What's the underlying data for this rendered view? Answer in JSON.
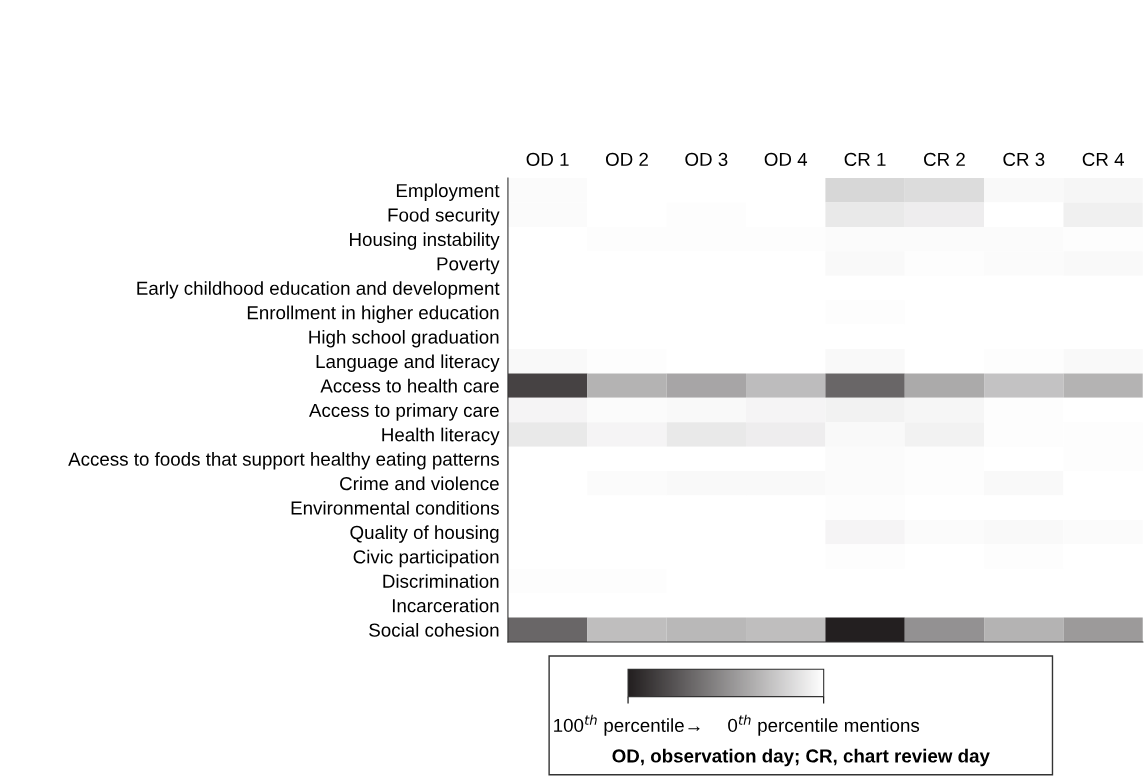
{
  "chart_data": {
    "type": "heatmap",
    "categories": [
      "OD 1",
      "OD 2",
      "OD 3",
      "OD 4",
      "CR 1",
      "CR 2",
      "CR 3",
      "CR 4"
    ],
    "y_categories": [
      "Employment",
      "Food security",
      "Housing instability",
      "Poverty",
      "Early childhood education and development",
      "Enrollment in higher education",
      "High school graduation",
      "Language and literacy",
      "Access to health care",
      "Access to primary care",
      "Health literacy",
      "Access to foods that support healthy eating patterns",
      "Crime and violence",
      "Environmental conditions",
      "Quality of housing",
      "Civic participation",
      "Discrimination",
      "Incarceration",
      "Social cohesion"
    ],
    "cells": [
      [
        2,
        0,
        0,
        0,
        18,
        16,
        3,
        4
      ],
      [
        2,
        0,
        1,
        0,
        10,
        8,
        0,
        7
      ],
      [
        0,
        1,
        1,
        1,
        2,
        2,
        2,
        1
      ],
      [
        0,
        0,
        0,
        0,
        3,
        1,
        2,
        3
      ],
      [
        0,
        0,
        0,
        0,
        0,
        0,
        0,
        0
      ],
      [
        0,
        0,
        0,
        0,
        1,
        0,
        0,
        0
      ],
      [
        0,
        0,
        0,
        0,
        0,
        0,
        0,
        0
      ],
      [
        3,
        1,
        0,
        0,
        3,
        0,
        1,
        3
      ],
      [
        84,
        34,
        40,
        30,
        68,
        38,
        27,
        34
      ],
      [
        5,
        2,
        3,
        5,
        6,
        4,
        1,
        0
      ],
      [
        10,
        5,
        10,
        8,
        3,
        6,
        1,
        1
      ],
      [
        0,
        0,
        0,
        0,
        2,
        1,
        0,
        1
      ],
      [
        0,
        2,
        3,
        3,
        2,
        1,
        3,
        0
      ],
      [
        0,
        0,
        0,
        0,
        1,
        0,
        0,
        0
      ],
      [
        0,
        0,
        0,
        0,
        5,
        2,
        3,
        2
      ],
      [
        0,
        0,
        0,
        0,
        1,
        0,
        1,
        0
      ],
      [
        1,
        1,
        0,
        0,
        0,
        0,
        0,
        0
      ],
      [
        0,
        0,
        0,
        0,
        0,
        0,
        0,
        0
      ],
      [
        68,
        29,
        32,
        29,
        100,
        49,
        34,
        45
      ]
    ],
    "clim": [
      100,
      0
    ],
    "cticks": [
      {
        "value": 100,
        "label": "100$^{th}$ percentile→"
      },
      {
        "value": 0,
        "label": "0$^{th}$ percentile mentions"
      }
    ],
    "annotations": [
      "OD, observation day; CR, chart review day"
    ]
  }
}
